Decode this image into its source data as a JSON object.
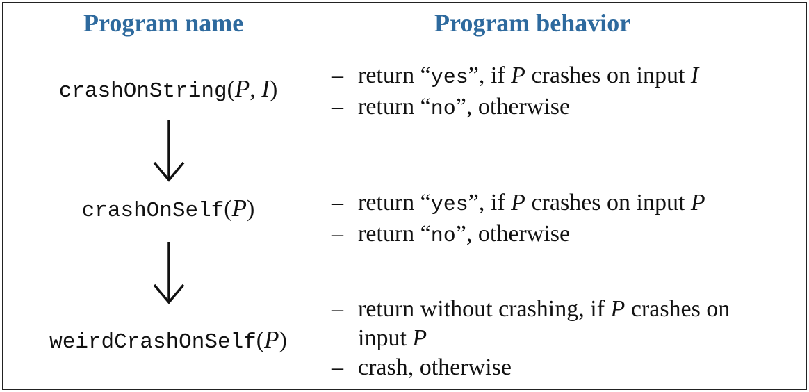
{
  "headers": {
    "name": "Program name",
    "behavior": "Program behavior"
  },
  "programs": [
    {
      "name": "crashOnString",
      "args": [
        "P",
        "I"
      ],
      "behavior": [
        {
          "dash": "–",
          "pre": "return “",
          "code": "yes",
          "post": "”, if ",
          "v1": "P",
          "mid": " crashes on input ",
          "v2": "I"
        },
        {
          "dash": "–",
          "pre": "return “",
          "code": "no",
          "post": "”, otherwise"
        }
      ]
    },
    {
      "name": "crashOnSelf",
      "args": [
        "P"
      ],
      "behavior": [
        {
          "dash": "–",
          "pre": "return “",
          "code": "yes",
          "post": "”, if ",
          "v1": "P",
          "mid": " crashes on input ",
          "v2": "P"
        },
        {
          "dash": "–",
          "pre": "return “",
          "code": "no",
          "post": "”, otherwise"
        }
      ]
    },
    {
      "name": "weirdCrashOnSelf",
      "args": [
        "P"
      ],
      "behavior": [
        {
          "dash": "–",
          "pre": "return without crashing, if ",
          "v1": "P",
          "mid": " crashes on"
        },
        {
          "cont": "input ",
          "v1": "P"
        },
        {
          "dash": "–",
          "pre": "crash, otherwise"
        }
      ]
    }
  ],
  "punct": {
    "open": "(",
    "close": ")",
    "comma": ", "
  }
}
